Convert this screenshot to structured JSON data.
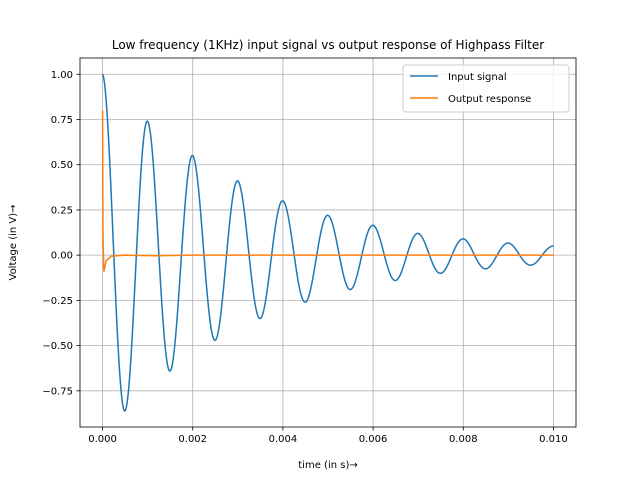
{
  "chart_data": {
    "type": "line",
    "title": "Low frequency (1KHz) input signal vs output response of Highpass Filter",
    "xlabel": "time (in s)→",
    "ylabel": "Voltage (in V)→",
    "xlim": [
      -0.0005,
      0.0105
    ],
    "ylim": [
      -0.95,
      1.09
    ],
    "xticks": [
      0.0,
      0.002,
      0.004,
      0.006,
      0.008,
      0.01
    ],
    "xtick_labels": [
      "0.000",
      "0.002",
      "0.004",
      "0.006",
      "0.008",
      "0.010"
    ],
    "yticks": [
      -0.75,
      -0.5,
      -0.25,
      0.0,
      0.25,
      0.5,
      0.75,
      1.0
    ],
    "ytick_labels": [
      "−0.75",
      "−0.50",
      "−0.25",
      "0.00",
      "0.25",
      "0.50",
      "0.75",
      "1.00"
    ],
    "grid": true,
    "legend_position": "top-right",
    "series": [
      {
        "name": "Input signal",
        "color": "#1f77b4",
        "x": [
          0.0,
          0.0005,
          0.001,
          0.0015,
          0.002,
          0.0025,
          0.003,
          0.0035,
          0.004,
          0.0045,
          0.005,
          0.0055,
          0.006,
          0.0065,
          0.007,
          0.0075,
          0.008,
          0.0085,
          0.009,
          0.0095,
          0.01
        ],
        "y": [
          1.0,
          -0.86,
          0.74,
          -0.64,
          0.55,
          -0.47,
          0.41,
          -0.35,
          0.3,
          -0.26,
          0.22,
          -0.19,
          0.165,
          -0.14,
          0.12,
          -0.1,
          0.09,
          -0.075,
          0.067,
          -0.055,
          0.05
        ]
      },
      {
        "name": "Output response",
        "color": "#ff7f0e",
        "x": [
          0.0,
          1e-05,
          3e-05,
          8e-05,
          0.0002,
          0.0005,
          0.0012,
          0.002,
          0.004,
          0.006,
          0.008,
          0.01
        ],
        "y": [
          0.8,
          0.1,
          -0.09,
          -0.03,
          -0.005,
          0.0,
          -0.003,
          0.0,
          0.0,
          0.0,
          0.0,
          0.0
        ]
      }
    ]
  }
}
